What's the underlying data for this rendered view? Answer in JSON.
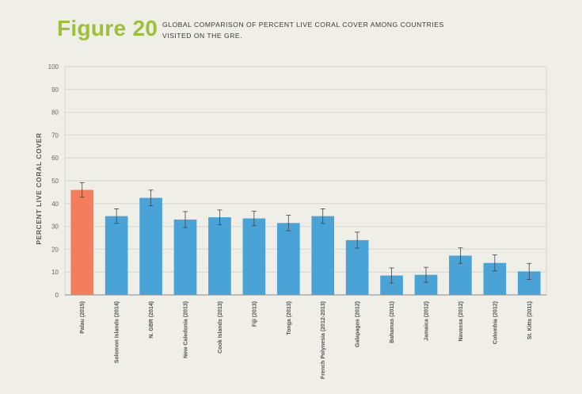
{
  "figure": {
    "number": "Figure 20",
    "caption": "GLOBAL COMPARISON OF PERCENT LIVE CORAL COVER AMONG COUNTRIES VISITED ON THE GRE."
  },
  "colors": {
    "highlight": "#f47d5c",
    "bar": "#4aa3d6",
    "grid": "#d6d6d0",
    "axis": "#8a8a8a",
    "title_accent": "#9dc03b",
    "background": "#efeee7"
  },
  "chart_data": {
    "type": "bar",
    "title": "",
    "xlabel": "",
    "ylabel": "PERCENT LIVE CORAL COVER",
    "ylim": [
      0,
      100
    ],
    "yticks": [
      0,
      10,
      20,
      30,
      40,
      50,
      60,
      70,
      80,
      90,
      100
    ],
    "grid": true,
    "categories": [
      "Palau (2015)",
      "Solomon Islands (2014)",
      "N. GBR (2014)",
      "New Caledonia (2013)",
      "Cook Islands (2013)",
      "Fiji (2013)",
      "Tonga (2013)",
      "French Polynesia (2012-2013)",
      "Galapagos (2012)",
      "Bahamas (2011)",
      "Jamaica (2012)",
      "Navassa (2012)",
      "Colombia (2012)",
      "St. Kitts (2011)"
    ],
    "values": [
      46,
      34.5,
      42.5,
      33,
      34,
      33.5,
      31.5,
      34.5,
      24,
      8.5,
      8.8,
      17.2,
      14,
      10.3
    ],
    "errors": [
      3.2,
      3.2,
      3.4,
      3.5,
      3.2,
      3.2,
      3.4,
      3.2,
      3.5,
      3.3,
      3.3,
      3.4,
      3.5,
      3.5
    ],
    "highlight_index": 0
  }
}
